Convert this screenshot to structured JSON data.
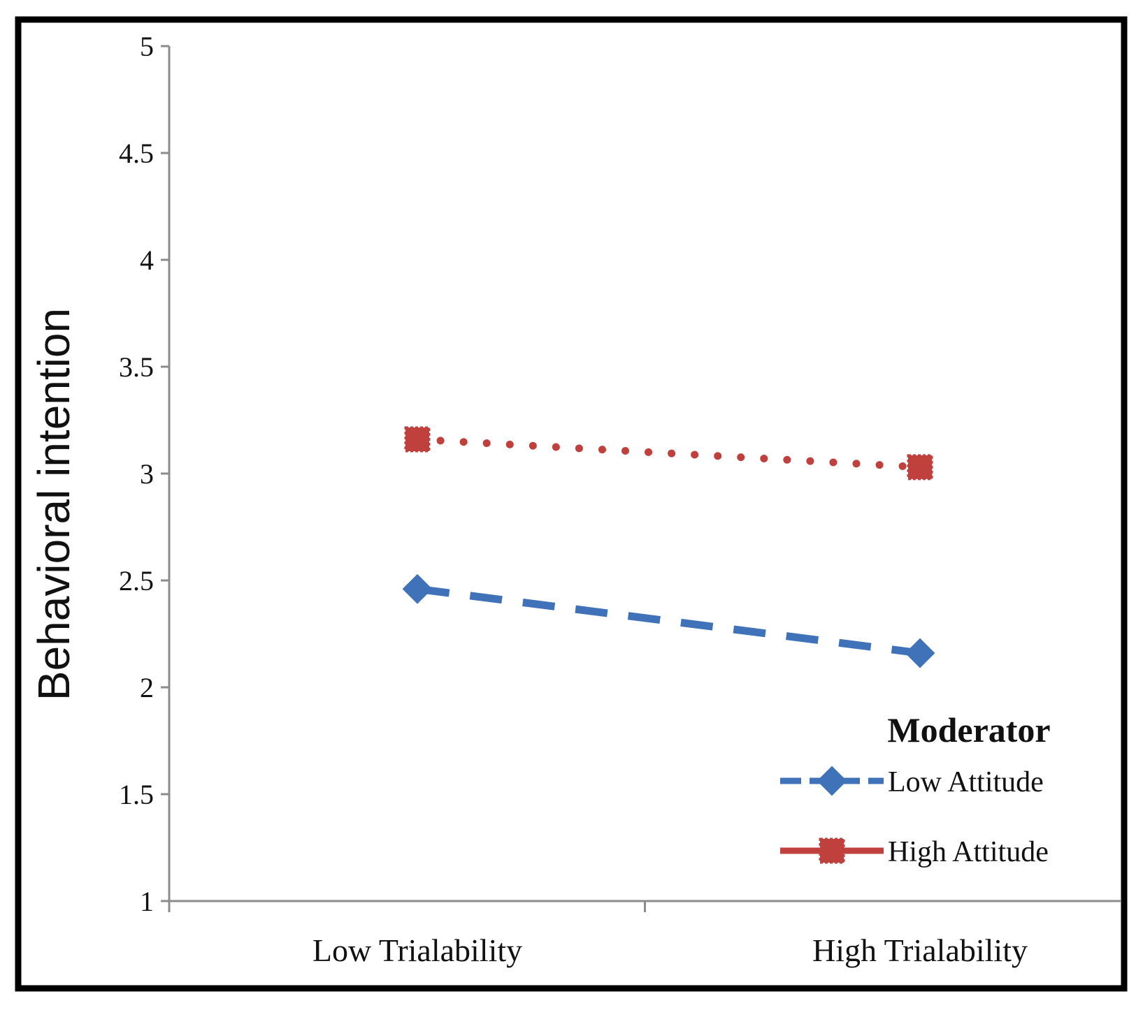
{
  "chart_data": {
    "type": "line",
    "title": "",
    "xlabel": "",
    "ylabel": "Behavioral intention",
    "categories": [
      "Low Trialability",
      "High Trialability"
    ],
    "ylim": [
      1,
      5
    ],
    "yticks": [
      1,
      1.5,
      2,
      2.5,
      3,
      3.5,
      4,
      4.5,
      5
    ],
    "ytick_labels": [
      "1",
      "1.5",
      "2",
      "2.5",
      "3",
      "3.5",
      "4",
      "4.5",
      "5"
    ],
    "grid": false,
    "legend": {
      "title": "Moderator",
      "placement": "bottom-right"
    },
    "series": [
      {
        "name": "Low Attitude",
        "values": [
          2.46,
          2.16
        ],
        "color": "#3f72b8",
        "line_style": "dashed",
        "marker": "diamond"
      },
      {
        "name": "High Attitude",
        "values": [
          3.16,
          3.03
        ],
        "color": "#c0403e",
        "line_style": "dotted",
        "marker": "square"
      }
    ]
  }
}
